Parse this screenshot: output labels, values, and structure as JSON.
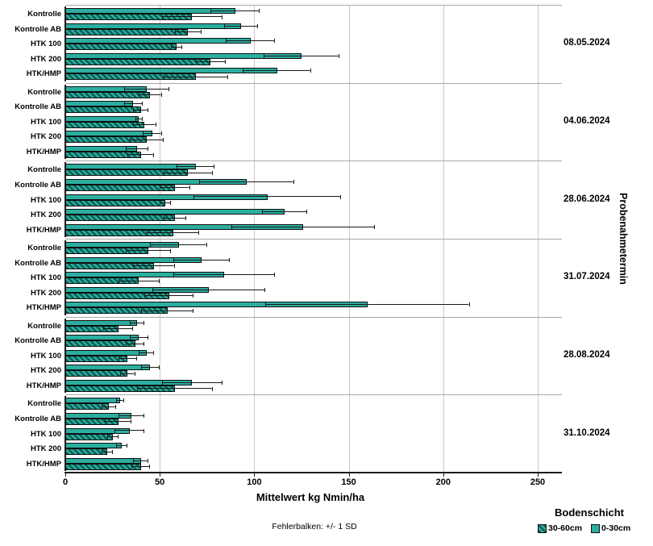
{
  "chart_data": {
    "type": "bar",
    "orientation": "horizontal",
    "xlabel": "Mittelwert kg Nmin/ha",
    "group_axis_label": "Probenahmetermin",
    "footnote": "Fehlerbalken: +/- 1 SD",
    "legend_title": "Bodenschicht",
    "legend_position": "bottom-right",
    "grid": true,
    "error_bars": "+/- 1 SD",
    "xlim": [
      0,
      263
    ],
    "xticks": [
      0,
      50,
      100,
      150,
      200,
      250
    ],
    "treatments": [
      "Kontrolle",
      "Kontrolle AB",
      "HTK 100",
      "HTK 200",
      "HTK/HMP"
    ],
    "series": [
      {
        "name": "30-60cm",
        "style": "hatched",
        "color": "#2baea0",
        "hatch_color": "#0b5e54"
      },
      {
        "name": "0-30cm",
        "style": "solid",
        "color": "#2baea0"
      }
    ],
    "groups": [
      {
        "date": "08.05.2024",
        "values_0_30": [
          90,
          93,
          98,
          125,
          112
        ],
        "sd_0_30": [
          13,
          9,
          13,
          20,
          18
        ],
        "values_30_60": [
          67,
          65,
          59,
          77,
          69
        ],
        "sd_30_60": [
          16,
          7,
          3,
          8,
          17
        ]
      },
      {
        "date": "04.06.2024",
        "values_0_30": [
          43,
          36,
          39,
          46,
          38
        ],
        "sd_0_30": [
          12,
          5,
          2,
          5,
          6
        ],
        "values_30_60": [
          45,
          40,
          42,
          43,
          40
        ],
        "sd_30_60": [
          6,
          4,
          6,
          9,
          7
        ]
      },
      {
        "date": "28.06.2024",
        "values_0_30": [
          69,
          96,
          107,
          116,
          126
        ],
        "sd_0_30": [
          10,
          25,
          39,
          12,
          38
        ],
        "values_30_60": [
          65,
          58,
          53,
          58,
          57
        ],
        "sd_30_60": [
          13,
          8,
          3,
          6,
          14
        ]
      },
      {
        "date": "31.07.2024",
        "values_0_30": [
          60,
          72,
          84,
          76,
          160
        ],
        "sd_0_30": [
          15,
          15,
          27,
          30,
          54
        ],
        "values_30_60": [
          44,
          47,
          39,
          55,
          54
        ],
        "sd_30_60": [
          12,
          11,
          11,
          13,
          14
        ]
      },
      {
        "date": "28.08.2024",
        "values_0_30": [
          38,
          39,
          43,
          45,
          67
        ],
        "sd_0_30": [
          4,
          5,
          4,
          5,
          16
        ],
        "values_30_60": [
          28,
          37,
          33,
          33,
          58
        ],
        "sd_30_60": [
          8,
          5,
          5,
          4,
          20
        ]
      },
      {
        "date": "31.10.2024",
        "values_0_30": [
          29,
          35,
          34,
          30,
          40
        ],
        "sd_0_30": [
          2,
          7,
          8,
          3,
          4
        ],
        "values_30_60": [
          23,
          28,
          25,
          22,
          40
        ],
        "sd_30_60": [
          4,
          7,
          3,
          3,
          5
        ]
      }
    ]
  },
  "colors": {
    "bar_teal": "#2baea0",
    "hatch_dark": "#0b5e54",
    "grid": "#c9c9c9",
    "axis": "#1c1c1c"
  }
}
